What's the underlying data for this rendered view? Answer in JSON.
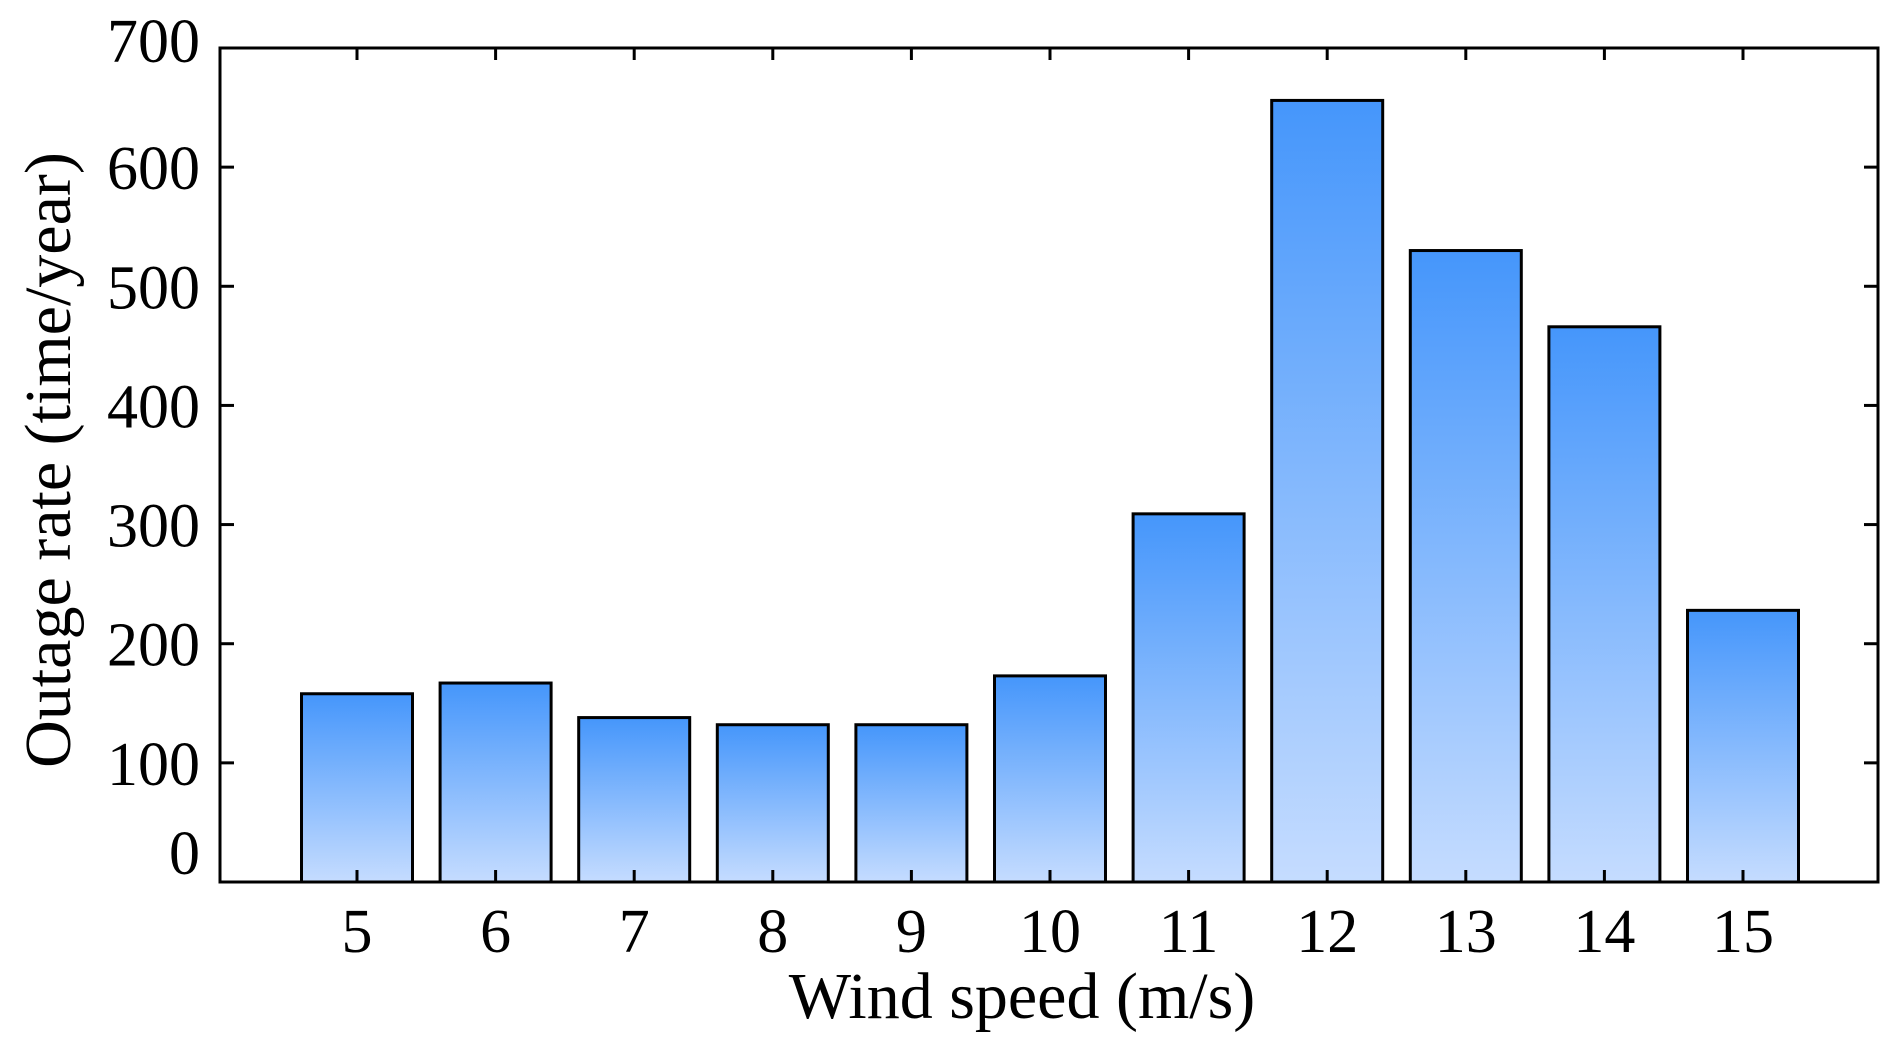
{
  "chart_data": {
    "type": "bar",
    "title": "",
    "xlabel": "Wind speed (m/s)",
    "ylabel": "Outage rate (time/year)",
    "categories": [
      "5",
      "6",
      "7",
      "8",
      "9",
      "10",
      "11",
      "12",
      "13",
      "14",
      "15"
    ],
    "values": [
      158,
      167,
      138,
      132,
      132,
      173,
      309,
      656,
      530,
      466,
      228
    ],
    "ylim": [
      0,
      700
    ],
    "yticks": [
      0,
      100,
      200,
      300,
      400,
      500,
      600,
      700
    ],
    "ytick_labels": [
      "0",
      "100",
      "200",
      "300",
      "400",
      "500",
      "600",
      "700"
    ],
    "grid": false,
    "legend": "none",
    "colors": {
      "bar_top": "#4596fb",
      "bar_bottom": "#c5dcff",
      "bar_edge": "#000000",
      "axis": "#000000"
    }
  }
}
